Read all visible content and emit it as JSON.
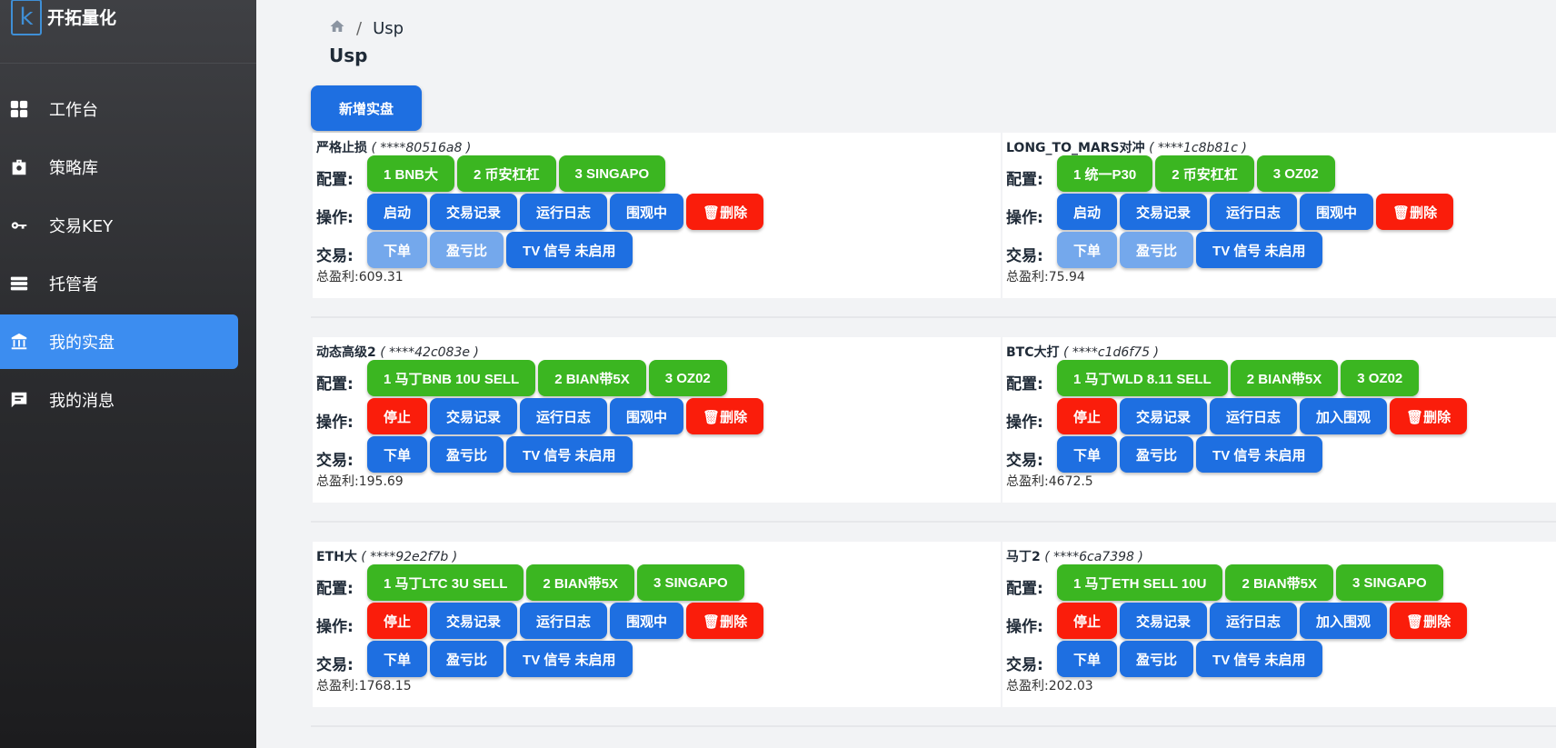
{
  "brand": {
    "name": "开拓量化",
    "logo_letter": "k"
  },
  "nav": [
    {
      "label": "工作台",
      "icon": "dashboard-icon"
    },
    {
      "label": "策略库",
      "icon": "toolbox-icon"
    },
    {
      "label": "交易KEY",
      "icon": "key-icon"
    },
    {
      "label": "托管者",
      "icon": "server-icon"
    },
    {
      "label": "我的实盘",
      "icon": "bank-icon",
      "active": true
    },
    {
      "label": "我的消息",
      "icon": "message-icon"
    }
  ],
  "breadcrumb": {
    "current": "Usp",
    "separator": "/"
  },
  "page_title": "Usp",
  "add_button": "新增实盘",
  "labels": {
    "config": "配置:",
    "ops": "操作:",
    "trade": "交易:",
    "profit": "总盈利:"
  },
  "cards": [
    {
      "name": "严格止损",
      "key": "****80516a8",
      "configs": [
        "1 BNB大",
        "2 币安杠杠",
        "3 SINGAPO"
      ],
      "ops": [
        [
          "启动",
          "blue"
        ],
        [
          "交易记录",
          "blue"
        ],
        [
          "运行日志",
          "blue"
        ],
        [
          "围观中",
          "blue"
        ],
        [
          "🗑删除",
          "red"
        ]
      ],
      "trade": [
        [
          "下单",
          "light"
        ],
        [
          "盈亏比",
          "light"
        ],
        [
          "TV 信号 未启用",
          "blue"
        ]
      ],
      "profit": "609.31"
    },
    {
      "name": "LONG_TO_MARS对冲",
      "key": "****1c8b81c",
      "configs": [
        "1 统一P30",
        "2 币安杠杠",
        "3 OZ02"
      ],
      "ops": [
        [
          "启动",
          "blue"
        ],
        [
          "交易记录",
          "blue"
        ],
        [
          "运行日志",
          "blue"
        ],
        [
          "围观中",
          "blue"
        ],
        [
          "🗑删除",
          "red"
        ]
      ],
      "trade": [
        [
          "下单",
          "light"
        ],
        [
          "盈亏比",
          "light"
        ],
        [
          "TV 信号 未启用",
          "blue"
        ]
      ],
      "profit": "75.94"
    },
    {
      "name": "动态高级2",
      "key": "****42c083e",
      "configs": [
        "1 马丁BNB 10U SELL",
        "2 BIAN带5X",
        "3 OZ02"
      ],
      "ops": [
        [
          "停止",
          "red"
        ],
        [
          "交易记录",
          "blue"
        ],
        [
          "运行日志",
          "blue"
        ],
        [
          "围观中",
          "blue"
        ],
        [
          "🗑删除",
          "red"
        ]
      ],
      "trade": [
        [
          "下单",
          "blue"
        ],
        [
          "盈亏比",
          "blue"
        ],
        [
          "TV 信号 未启用",
          "blue"
        ]
      ],
      "profit": "195.69"
    },
    {
      "name": "BTC大打",
      "key": "****c1d6f75",
      "configs": [
        "1 马丁WLD 8.11 SELL",
        "2 BIAN带5X",
        "3 OZ02"
      ],
      "ops": [
        [
          "停止",
          "red"
        ],
        [
          "交易记录",
          "blue"
        ],
        [
          "运行日志",
          "blue"
        ],
        [
          "加入围观",
          "blue"
        ],
        [
          "🗑删除",
          "red"
        ]
      ],
      "trade": [
        [
          "下单",
          "blue"
        ],
        [
          "盈亏比",
          "blue"
        ],
        [
          "TV 信号 未启用",
          "blue"
        ]
      ],
      "profit": "4672.5"
    },
    {
      "name": "ETH大",
      "key": "****92e2f7b",
      "configs": [
        "1 马丁LTC 3U SELL",
        "2 BIAN带5X",
        "3 SINGAPO"
      ],
      "ops": [
        [
          "停止",
          "red"
        ],
        [
          "交易记录",
          "blue"
        ],
        [
          "运行日志",
          "blue"
        ],
        [
          "围观中",
          "blue"
        ],
        [
          "🗑删除",
          "red"
        ]
      ],
      "trade": [
        [
          "下单",
          "blue"
        ],
        [
          "盈亏比",
          "blue"
        ],
        [
          "TV 信号 未启用",
          "blue"
        ]
      ],
      "profit": "1768.15"
    },
    {
      "name": "马丁2",
      "key": "****6ca7398",
      "configs": [
        "1 马丁ETH SELL 10U",
        "2 BIAN带5X",
        "3 SINGAPO"
      ],
      "ops": [
        [
          "停止",
          "red"
        ],
        [
          "交易记录",
          "blue"
        ],
        [
          "运行日志",
          "blue"
        ],
        [
          "加入围观",
          "blue"
        ],
        [
          "🗑删除",
          "red"
        ]
      ],
      "trade": [
        [
          "下单",
          "blue"
        ],
        [
          "盈亏比",
          "blue"
        ],
        [
          "TV 信号 未启用",
          "blue"
        ]
      ],
      "profit": "202.03"
    }
  ]
}
